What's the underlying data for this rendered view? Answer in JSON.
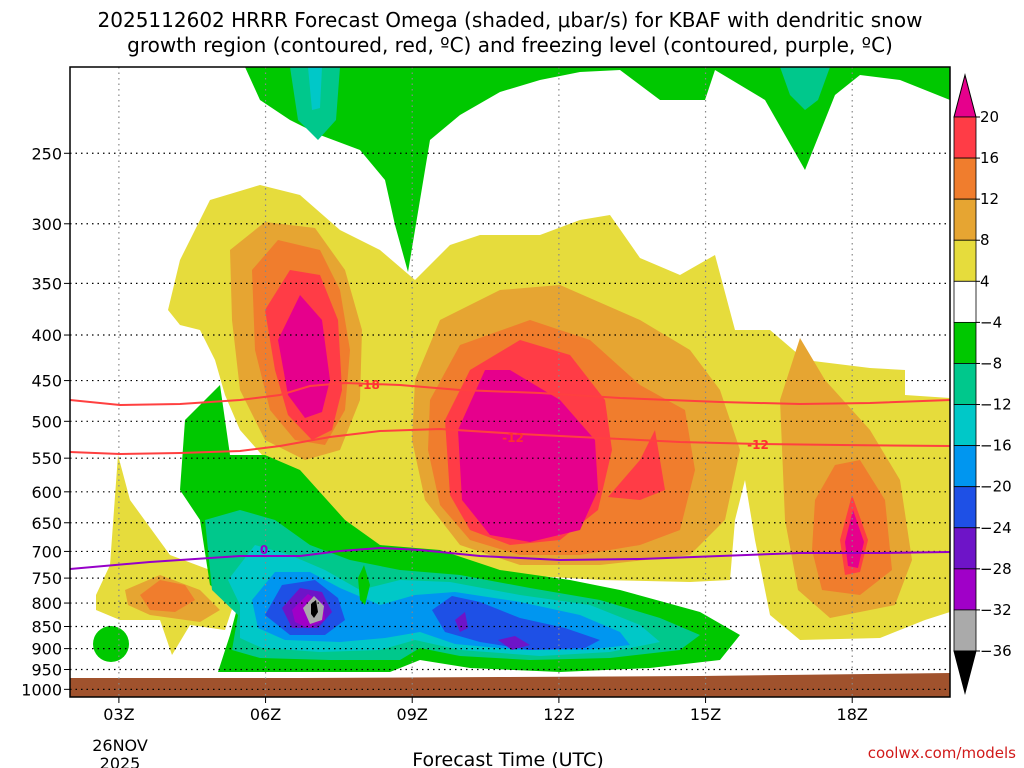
{
  "chart_data": {
    "type": "heatmap",
    "title_line1": "2025112602 HRRR Forecast Omega (shaded, μbar/s) for KBAF with dendritic snow",
    "title_line2": "growth region (contoured, red, ºC) and freezing level (contoured, purple, ºC)",
    "xlabel": "Forecast Time (UTC)",
    "x_ticks": [
      "03Z",
      "06Z",
      "09Z",
      "12Z",
      "15Z",
      "18Z"
    ],
    "x_tick_hours": [
      3,
      6,
      9,
      12,
      15,
      18
    ],
    "x_date": [
      "26NOV",
      "2025"
    ],
    "xlim_hours": [
      2,
      20
    ],
    "y_ticks": [
      250,
      300,
      350,
      400,
      450,
      500,
      550,
      600,
      650,
      700,
      750,
      800,
      850,
      900,
      950,
      1000
    ],
    "y_tick_labels": [
      "250",
      "300",
      "350",
      "400",
      "450",
      "500",
      "550",
      "600",
      "650",
      "700",
      "750",
      "800",
      "850",
      "900",
      "950",
      "1000"
    ],
    "ylim_hpa": [
      200,
      1020
    ],
    "colorbar": {
      "labels": [
        "20",
        "16",
        "12",
        "8",
        "4",
        "−4",
        "−8",
        "−12",
        "−16",
        "−20",
        "−24",
        "−28",
        "−32",
        "−36"
      ],
      "colors": [
        "#ff3c46",
        "#f07d2d",
        "#e6a532",
        "#e6dc3c",
        "#ffffff",
        "#00c800",
        "#00c88c",
        "#00c8c8",
        "#0096f0",
        "#1e50e6",
        "#6e14c8",
        "#a000c8",
        "#aaaaaa"
      ],
      "top_color": "#e6008c",
      "bottom_color": "#000000"
    },
    "contour_labels": {
      "upper_red": "-18",
      "lower_red_a": "-12",
      "lower_red_b": "-12"
    },
    "freezing_level_label": "0",
    "credit": "coolwx.com/models",
    "colors": {
      "pink": "#e6008c",
      "red": "#ff3c46",
      "orange": "#f07d2d",
      "gold": "#e6a532",
      "yellow": "#e6dc3c",
      "green": "#00c800",
      "teal": "#00c88c",
      "cyan": "#00c8c8",
      "lightblue": "#0096f0",
      "blue": "#1e50e6",
      "purple": "#6e14c8",
      "violet": "#a000c8",
      "gray": "#aaaaaa",
      "terrain": "#a0522d",
      "dgz_line": "#ff4040",
      "freezing_line": "#9600c8"
    }
  }
}
